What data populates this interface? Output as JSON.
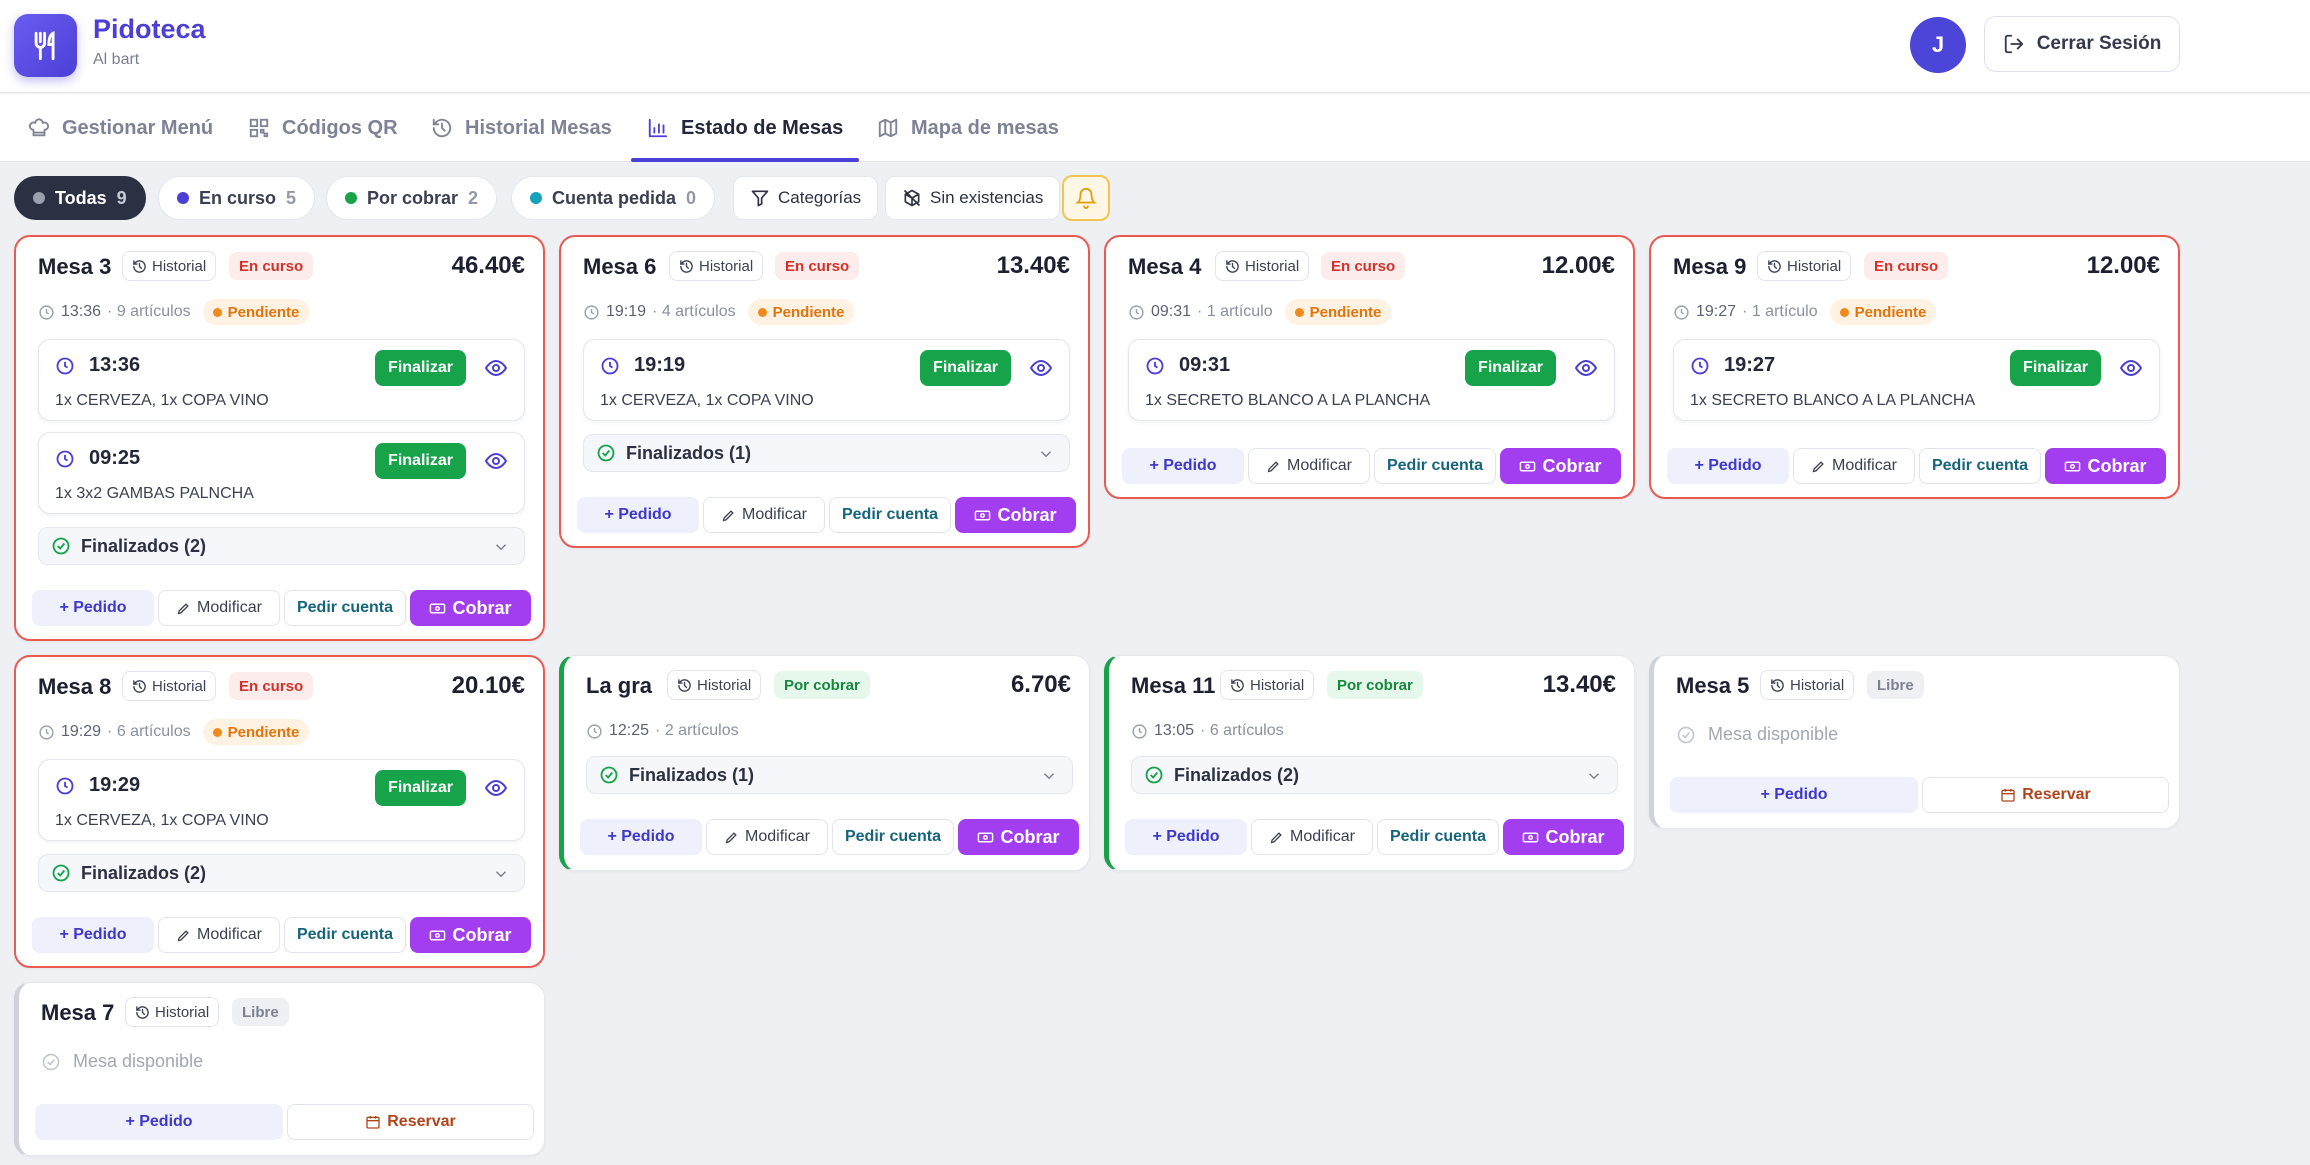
{
  "app": {
    "title": "Pidoteca",
    "subtitle": "Al bart"
  },
  "user": {
    "initial": "J",
    "logout_label": "Cerrar Sesión"
  },
  "tabs": [
    {
      "label": "Gestionar Menú",
      "icon": "chef-hat-icon"
    },
    {
      "label": "Códigos QR",
      "icon": "qr-code-icon"
    },
    {
      "label": "Historial Mesas",
      "icon": "history-icon"
    },
    {
      "label": "Estado de Mesas",
      "icon": "bar-chart-icon",
      "active": true
    },
    {
      "label": "Mapa de mesas",
      "icon": "map-icon"
    }
  ],
  "filters": [
    {
      "label": "Todas",
      "count": "9",
      "color": "#9aa0ae"
    },
    {
      "label": "En curso",
      "count": "5",
      "color": "#4b3fd6"
    },
    {
      "label": "Por cobrar",
      "count": "2",
      "color": "#16a34a"
    },
    {
      "label": "Cuenta pedida",
      "count": "0",
      "color": "#14a3b8"
    }
  ],
  "tools": {
    "categorias": "Categorías",
    "sin_existencias": "Sin existencias"
  },
  "labels": {
    "historial": "Historial",
    "finalizar": "Finalizar",
    "pedido": "+ Pedido",
    "modificar": "Modificar",
    "pedir_cuenta": "Pedir cuenta",
    "cobrar": "Cobrar",
    "reservar": "Reservar",
    "pendiente": "Pendiente",
    "disponible": "Mesa disponible"
  },
  "tables": [
    {
      "name": "Mesa 3",
      "status": "En curso",
      "total": "46.40€",
      "time": "13:36",
      "articles": "· 9 artículos",
      "pending": true,
      "orders": [
        {
          "time": "13:36",
          "items": "1x CERVEZA, 1x COPA VINO"
        },
        {
          "time": "09:25",
          "items": "1x 3x2 GAMBAS PALNCHA"
        }
      ],
      "finished": "Finalizados (2)"
    },
    {
      "name": "Mesa 6",
      "status": "En curso",
      "total": "13.40€",
      "time": "19:19",
      "articles": "· 4 artículos",
      "pending": true,
      "orders": [
        {
          "time": "19:19",
          "items": "1x CERVEZA, 1x COPA VINO"
        }
      ],
      "finished": "Finalizados (1)"
    },
    {
      "name": "Mesa 4",
      "status": "En curso",
      "total": "12.00€",
      "time": "09:31",
      "articles": "· 1 artículo",
      "pending": true,
      "orders": [
        {
          "time": "09:31",
          "items": "1x SECRETO BLANCO A LA PLANCHA"
        }
      ]
    },
    {
      "name": "Mesa 9",
      "status": "En curso",
      "total": "12.00€",
      "time": "19:27",
      "articles": "· 1 artículo",
      "pending": true,
      "orders": [
        {
          "time": "19:27",
          "items": "1x SECRETO BLANCO A LA PLANCHA"
        }
      ]
    },
    {
      "name": "Mesa 8",
      "status": "En curso",
      "total": "20.10€",
      "time": "19:29",
      "articles": "· 6 artículos",
      "pending": true,
      "orders": [
        {
          "time": "19:29",
          "items": "1x CERVEZA, 1x COPA VINO"
        }
      ],
      "finished": "Finalizados (2)"
    },
    {
      "name": "La gra",
      "status": "Por cobrar",
      "total": "6.70€",
      "time": "12:25",
      "articles": "· 2 artículos",
      "finished": "Finalizados (1)"
    },
    {
      "name": "Mesa 11",
      "status": "Por cobrar",
      "total": "13.40€",
      "time": "13:05",
      "articles": "· 6 artículos",
      "finished": "Finalizados (2)"
    },
    {
      "name": "Mesa 5",
      "status": "Libre"
    },
    {
      "name": "Mesa 7",
      "status": "Libre"
    }
  ],
  "colors": {
    "accent": "#4b3fd6",
    "in_progress_border": "#ea5a52",
    "to_charge_border": "#16a34a",
    "cobrar": "#a23ef0",
    "finalizar": "#16a34a"
  }
}
